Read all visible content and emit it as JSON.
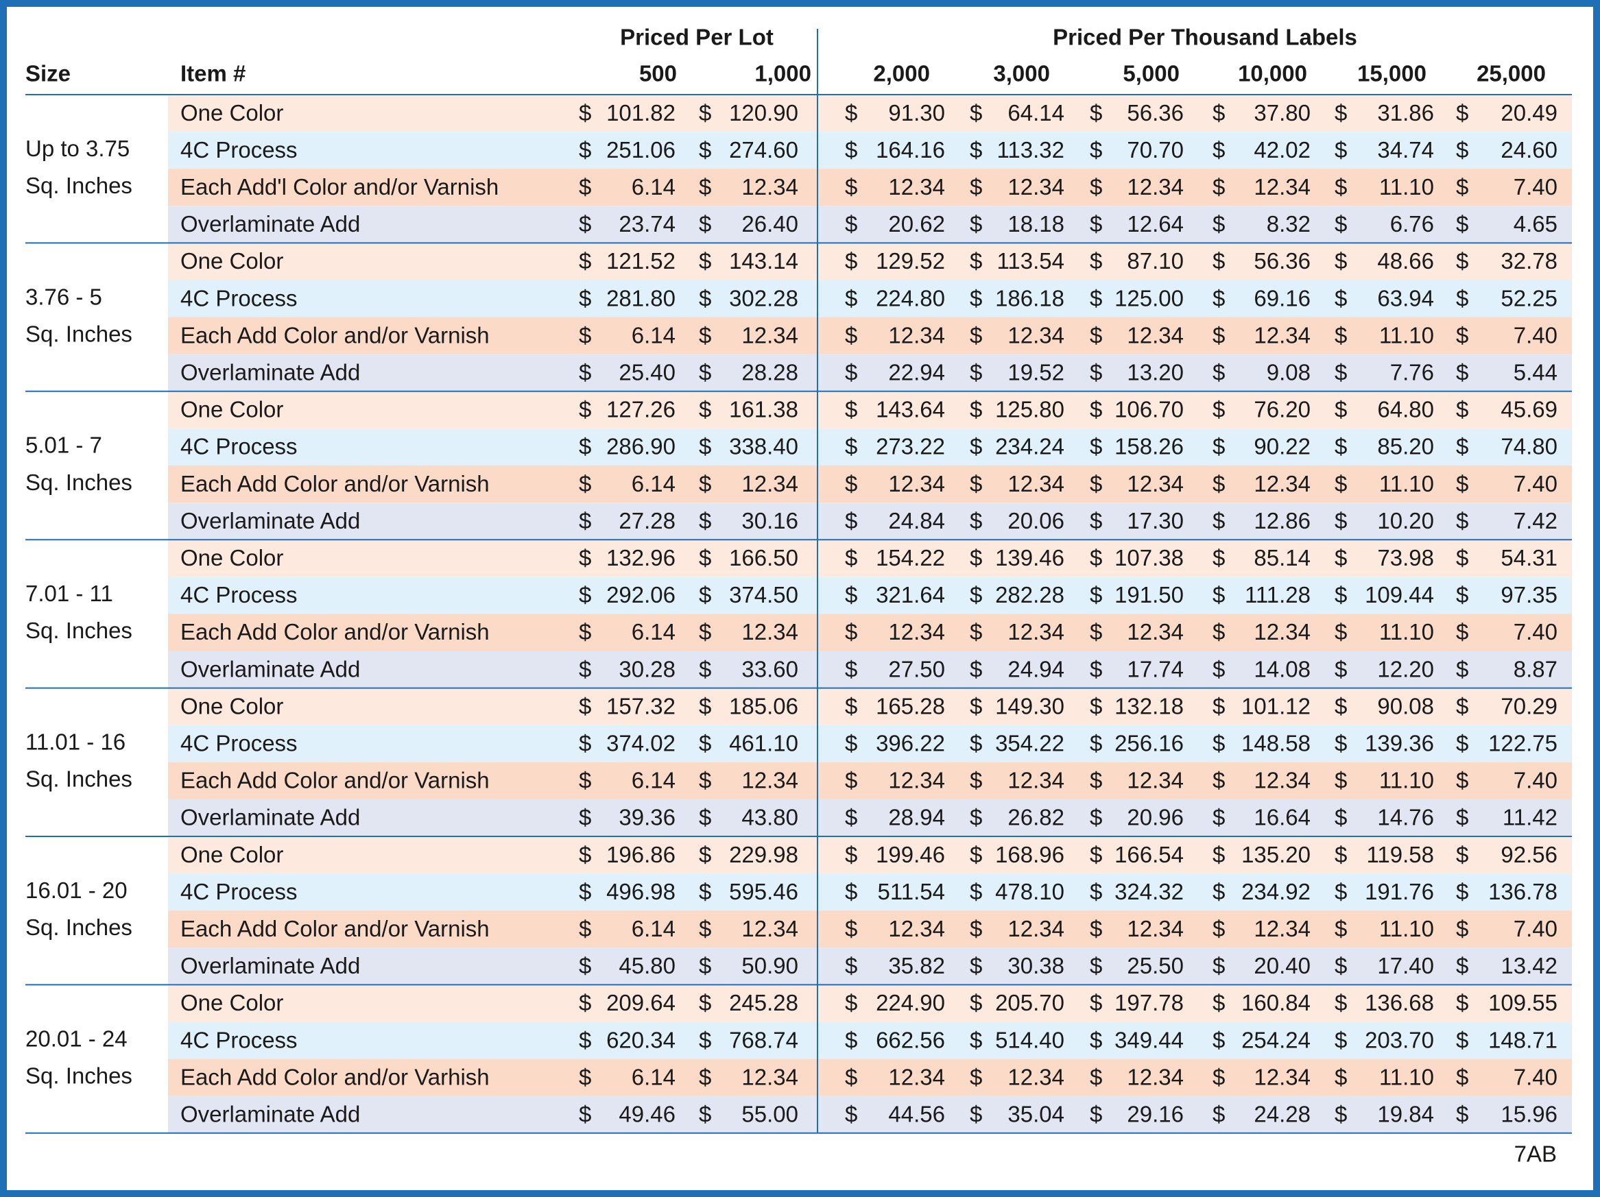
{
  "header": {
    "groups": [
      "Priced Per Lot",
      "Priced Per Thousand Labels"
    ],
    "size": "Size",
    "item": "Item #",
    "columns": [
      "500",
      "1,000",
      "2,000",
      "3,000",
      "5,000",
      "10,000",
      "15,000",
      "25,000"
    ]
  },
  "currency": "$",
  "groups": [
    {
      "size": [
        "Up to 3.75",
        "Sq. Inches"
      ],
      "rows": [
        {
          "item": "One Color",
          "prices": [
            "101.82",
            "120.90",
            "91.30",
            "64.14",
            "56.36",
            "37.80",
            "31.86",
            "20.49"
          ]
        },
        {
          "item": "4C Process",
          "prices": [
            "251.06",
            "274.60",
            "164.16",
            "113.32",
            "70.70",
            "42.02",
            "34.74",
            "24.60"
          ]
        },
        {
          "item": "Each Add'l Color and/or Varnish",
          "prices": [
            "6.14",
            "12.34",
            "12.34",
            "12.34",
            "12.34",
            "12.34",
            "11.10",
            "7.40"
          ]
        },
        {
          "item": "Overlaminate Add",
          "prices": [
            "23.74",
            "26.40",
            "20.62",
            "18.18",
            "12.64",
            "8.32",
            "6.76",
            "4.65"
          ]
        }
      ]
    },
    {
      "size": [
        "3.76 - 5",
        "Sq. Inches"
      ],
      "rows": [
        {
          "item": "One Color",
          "prices": [
            "121.52",
            "143.14",
            "129.52",
            "113.54",
            "87.10",
            "56.36",
            "48.66",
            "32.78"
          ]
        },
        {
          "item": "4C Process",
          "prices": [
            "281.80",
            "302.28",
            "224.80",
            "186.18",
            "125.00",
            "69.16",
            "63.94",
            "52.25"
          ]
        },
        {
          "item": "Each Add Color and/or Varnish",
          "prices": [
            "6.14",
            "12.34",
            "12.34",
            "12.34",
            "12.34",
            "12.34",
            "11.10",
            "7.40"
          ]
        },
        {
          "item": "Overlaminate Add",
          "prices": [
            "25.40",
            "28.28",
            "22.94",
            "19.52",
            "13.20",
            "9.08",
            "7.76",
            "5.44"
          ]
        }
      ]
    },
    {
      "size": [
        "5.01 - 7",
        "Sq. Inches"
      ],
      "rows": [
        {
          "item": "One Color",
          "prices": [
            "127.26",
            "161.38",
            "143.64",
            "125.80",
            "106.70",
            "76.20",
            "64.80",
            "45.69"
          ]
        },
        {
          "item": "4C Process",
          "prices": [
            "286.90",
            "338.40",
            "273.22",
            "234.24",
            "158.26",
            "90.22",
            "85.20",
            "74.80"
          ]
        },
        {
          "item": "Each Add Color and/or Varnish",
          "prices": [
            "6.14",
            "12.34",
            "12.34",
            "12.34",
            "12.34",
            "12.34",
            "11.10",
            "7.40"
          ]
        },
        {
          "item": "Overlaminate Add",
          "prices": [
            "27.28",
            "30.16",
            "24.84",
            "20.06",
            "17.30",
            "12.86",
            "10.20",
            "7.42"
          ]
        }
      ]
    },
    {
      "size": [
        "7.01 - 11",
        "Sq. Inches"
      ],
      "rows": [
        {
          "item": "One Color",
          "prices": [
            "132.96",
            "166.50",
            "154.22",
            "139.46",
            "107.38",
            "85.14",
            "73.98",
            "54.31"
          ]
        },
        {
          "item": "4C Process",
          "prices": [
            "292.06",
            "374.50",
            "321.64",
            "282.28",
            "191.50",
            "111.28",
            "109.44",
            "97.35"
          ]
        },
        {
          "item": "Each Add Color and/or Varnish",
          "prices": [
            "6.14",
            "12.34",
            "12.34",
            "12.34",
            "12.34",
            "12.34",
            "11.10",
            "7.40"
          ]
        },
        {
          "item": "Overlaminate Add",
          "prices": [
            "30.28",
            "33.60",
            "27.50",
            "24.94",
            "17.74",
            "14.08",
            "12.20",
            "8.87"
          ]
        }
      ]
    },
    {
      "size": [
        "11.01 - 16",
        "Sq. Inches"
      ],
      "rows": [
        {
          "item": "One Color",
          "prices": [
            "157.32",
            "185.06",
            "165.28",
            "149.30",
            "132.18",
            "101.12",
            "90.08",
            "70.29"
          ]
        },
        {
          "item": "4C Process",
          "prices": [
            "374.02",
            "461.10",
            "396.22",
            "354.22",
            "256.16",
            "148.58",
            "139.36",
            "122.75"
          ]
        },
        {
          "item": "Each Add Color and/or Varnish",
          "prices": [
            "6.14",
            "12.34",
            "12.34",
            "12.34",
            "12.34",
            "12.34",
            "11.10",
            "7.40"
          ]
        },
        {
          "item": "Overlaminate Add",
          "prices": [
            "39.36",
            "43.80",
            "28.94",
            "26.82",
            "20.96",
            "16.64",
            "14.76",
            "11.42"
          ]
        }
      ]
    },
    {
      "size": [
        "16.01 - 20",
        "Sq. Inches"
      ],
      "rows": [
        {
          "item": "One Color",
          "prices": [
            "196.86",
            "229.98",
            "199.46",
            "168.96",
            "166.54",
            "135.20",
            "119.58",
            "92.56"
          ]
        },
        {
          "item": "4C Process",
          "prices": [
            "496.98",
            "595.46",
            "511.54",
            "478.10",
            "324.32",
            "234.92",
            "191.76",
            "136.78"
          ]
        },
        {
          "item": "Each Add Color and/or Varnish",
          "prices": [
            "6.14",
            "12.34",
            "12.34",
            "12.34",
            "12.34",
            "12.34",
            "11.10",
            "7.40"
          ]
        },
        {
          "item": "Overlaminate Add",
          "prices": [
            "45.80",
            "50.90",
            "35.82",
            "30.38",
            "25.50",
            "20.40",
            "17.40",
            "13.42"
          ]
        }
      ]
    },
    {
      "size": [
        "20.01 - 24",
        "Sq. Inches"
      ],
      "rows": [
        {
          "item": "One Color",
          "prices": [
            "209.64",
            "245.28",
            "224.90",
            "205.70",
            "197.78",
            "160.84",
            "136.68",
            "109.55"
          ]
        },
        {
          "item": "4C Process",
          "prices": [
            "620.34",
            "768.74",
            "662.56",
            "514.40",
            "349.44",
            "254.24",
            "203.70",
            "148.71"
          ]
        },
        {
          "item": "Each Add Color and/or Varhish",
          "prices": [
            "6.14",
            "12.34",
            "12.34",
            "12.34",
            "12.34",
            "12.34",
            "11.10",
            "7.40"
          ]
        },
        {
          "item": "Overlaminate Add",
          "prices": [
            "49.46",
            "55.00",
            "44.56",
            "35.04",
            "29.16",
            "24.28",
            "19.84",
            "15.96"
          ]
        }
      ]
    }
  ],
  "footer": "7AB"
}
